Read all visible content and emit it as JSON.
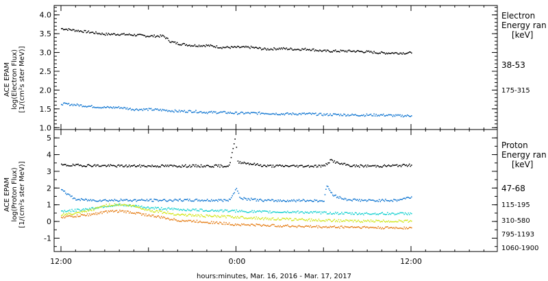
{
  "colors": {
    "black": "#000000",
    "blue": "#1478d2",
    "cyan": "#1ed2d2",
    "yellow": "#d2e61e",
    "orange": "#e6821e"
  },
  "xlabel": "hours:minutes, Mar. 16, 2016 - Mar. 17, 2017",
  "x_ticks": [
    "12:00",
    "0:00",
    "12:00"
  ],
  "chart_data": [
    {
      "type": "scatter",
      "ylabel": [
        "ACE EPAM",
        "log(Electron Flux)",
        "[1/(cm²s ster MeV)]"
      ],
      "ylim": [
        0.95,
        4.25
      ],
      "y_ticks": [
        "1.0",
        "1.5",
        "2.0",
        "2.5",
        "3.0",
        "3.5",
        "4.0"
      ],
      "legend_title": [
        "Electron",
        "Energy ran",
        "[keV]"
      ],
      "x_unit": "hours from Mar. 16 12:00",
      "series": [
        {
          "name": "38-53",
          "color": "black",
          "points": [
            [
              0,
              3.65
            ],
            [
              1,
              3.6
            ],
            [
              2,
              3.55
            ],
            [
              3,
              3.5
            ],
            [
              4,
              3.5
            ],
            [
              5,
              3.48
            ],
            [
              6,
              3.45
            ],
            [
              7,
              3.45
            ],
            [
              7.5,
              3.3
            ],
            [
              8,
              3.25
            ],
            [
              9,
              3.2
            ],
            [
              10,
              3.2
            ],
            [
              11,
              3.15
            ],
            [
              12,
              3.15
            ],
            [
              13,
              3.15
            ],
            [
              14,
              3.1
            ],
            [
              15,
              3.12
            ],
            [
              16,
              3.1
            ],
            [
              17,
              3.1
            ],
            [
              18,
              3.05
            ],
            [
              19,
              3.05
            ],
            [
              20,
              3.05
            ],
            [
              21,
              3.03
            ],
            [
              22,
              3.0
            ],
            [
              23,
              3.0
            ],
            [
              24,
              3.0
            ]
          ]
        },
        {
          "name": "175-315",
          "color": "blue",
          "points": [
            [
              0,
              1.65
            ],
            [
              1,
              1.62
            ],
            [
              2,
              1.58
            ],
            [
              3,
              1.55
            ],
            [
              4,
              1.55
            ],
            [
              5,
              1.5
            ],
            [
              6,
              1.5
            ],
            [
              7,
              1.48
            ],
            [
              8,
              1.45
            ],
            [
              9,
              1.45
            ],
            [
              10,
              1.42
            ],
            [
              11,
              1.42
            ],
            [
              12,
              1.4
            ],
            [
              13,
              1.4
            ],
            [
              14,
              1.4
            ],
            [
              15,
              1.38
            ],
            [
              16,
              1.38
            ],
            [
              17,
              1.38
            ],
            [
              18,
              1.36
            ],
            [
              19,
              1.36
            ],
            [
              20,
              1.35
            ],
            [
              21,
              1.35
            ],
            [
              22,
              1.35
            ],
            [
              23,
              1.33
            ],
            [
              24,
              1.33
            ]
          ]
        }
      ]
    },
    {
      "type": "scatter",
      "ylabel": [
        "ACE EPAM",
        "log(Proton Flux)",
        "[1/(cm²s ster MeV)]"
      ],
      "ylim": [
        -1.8,
        5.5
      ],
      "y_ticks": [
        "-1",
        "0",
        "1",
        "2",
        "3",
        "4",
        "5"
      ],
      "legend_title": [
        "Proton",
        "Energy ran",
        "[keV]"
      ],
      "x_unit": "hours from Mar. 16 12:00",
      "series": [
        {
          "name": "47-68",
          "color": "black",
          "points": [
            [
              0,
              3.4
            ],
            [
              2,
              3.38
            ],
            [
              4,
              3.35
            ],
            [
              6,
              3.35
            ],
            [
              8,
              3.35
            ],
            [
              10,
              3.35
            ],
            [
              11.5,
              3.35
            ],
            [
              11.9,
              4.9
            ],
            [
              12,
              4.5
            ],
            [
              12.1,
              3.6
            ],
            [
              14,
              3.35
            ],
            [
              16,
              3.35
            ],
            [
              18,
              3.35
            ],
            [
              18.5,
              3.7
            ],
            [
              19,
              3.5
            ],
            [
              20,
              3.35
            ],
            [
              22,
              3.35
            ],
            [
              24,
              3.4
            ]
          ]
        },
        {
          "name": "115-195",
          "color": "blue",
          "points": [
            [
              0,
              2.0
            ],
            [
              0.5,
              1.6
            ],
            [
              1,
              1.35
            ],
            [
              2,
              1.3
            ],
            [
              4,
              1.3
            ],
            [
              6,
              1.3
            ],
            [
              8,
              1.3
            ],
            [
              10,
              1.3
            ],
            [
              11.5,
              1.3
            ],
            [
              12,
              2.0
            ],
            [
              12.3,
              1.4
            ],
            [
              14,
              1.28
            ],
            [
              16,
              1.28
            ],
            [
              18,
              1.28
            ],
            [
              18.2,
              2.2
            ],
            [
              18.6,
              1.6
            ],
            [
              19.5,
              1.35
            ],
            [
              21,
              1.28
            ],
            [
              23,
              1.3
            ],
            [
              24,
              1.5
            ]
          ]
        },
        {
          "name": "310-580",
          "color": "cyan",
          "points": [
            [
              0,
              0.65
            ],
            [
              1,
              0.7
            ],
            [
              2,
              0.8
            ],
            [
              3,
              0.95
            ],
            [
              4,
              1.0
            ],
            [
              5,
              0.95
            ],
            [
              6,
              0.85
            ],
            [
              8,
              0.75
            ],
            [
              10,
              0.7
            ],
            [
              12,
              0.65
            ],
            [
              14,
              0.6
            ],
            [
              16,
              0.6
            ],
            [
              18,
              0.55
            ],
            [
              20,
              0.5
            ],
            [
              22,
              0.5
            ],
            [
              24,
              0.5
            ]
          ]
        },
        {
          "name": "795-1193",
          "color": "yellow",
          "points": [
            [
              0,
              0.45
            ],
            [
              1,
              0.5
            ],
            [
              2,
              0.7
            ],
            [
              3,
              1.0
            ],
            [
              4,
              1.05
            ],
            [
              5,
              0.95
            ],
            [
              6,
              0.7
            ],
            [
              8,
              0.45
            ],
            [
              10,
              0.35
            ],
            [
              12,
              0.3
            ],
            [
              14,
              0.2
            ],
            [
              16,
              0.15
            ],
            [
              18,
              0.1
            ],
            [
              20,
              0.05
            ],
            [
              22,
              0.05
            ],
            [
              24,
              0.05
            ]
          ]
        },
        {
          "name": "1060-1900",
          "color": "orange",
          "points": [
            [
              0,
              0.3
            ],
            [
              1,
              0.35
            ],
            [
              2,
              0.45
            ],
            [
              3,
              0.6
            ],
            [
              4,
              0.65
            ],
            [
              5,
              0.55
            ],
            [
              6,
              0.4
            ],
            [
              8,
              0.1
            ],
            [
              10,
              0.0
            ],
            [
              12,
              -0.15
            ],
            [
              14,
              -0.2
            ],
            [
              16,
              -0.25
            ],
            [
              18,
              -0.3
            ],
            [
              20,
              -0.3
            ],
            [
              22,
              -0.35
            ],
            [
              24,
              -0.35
            ]
          ]
        }
      ]
    }
  ]
}
